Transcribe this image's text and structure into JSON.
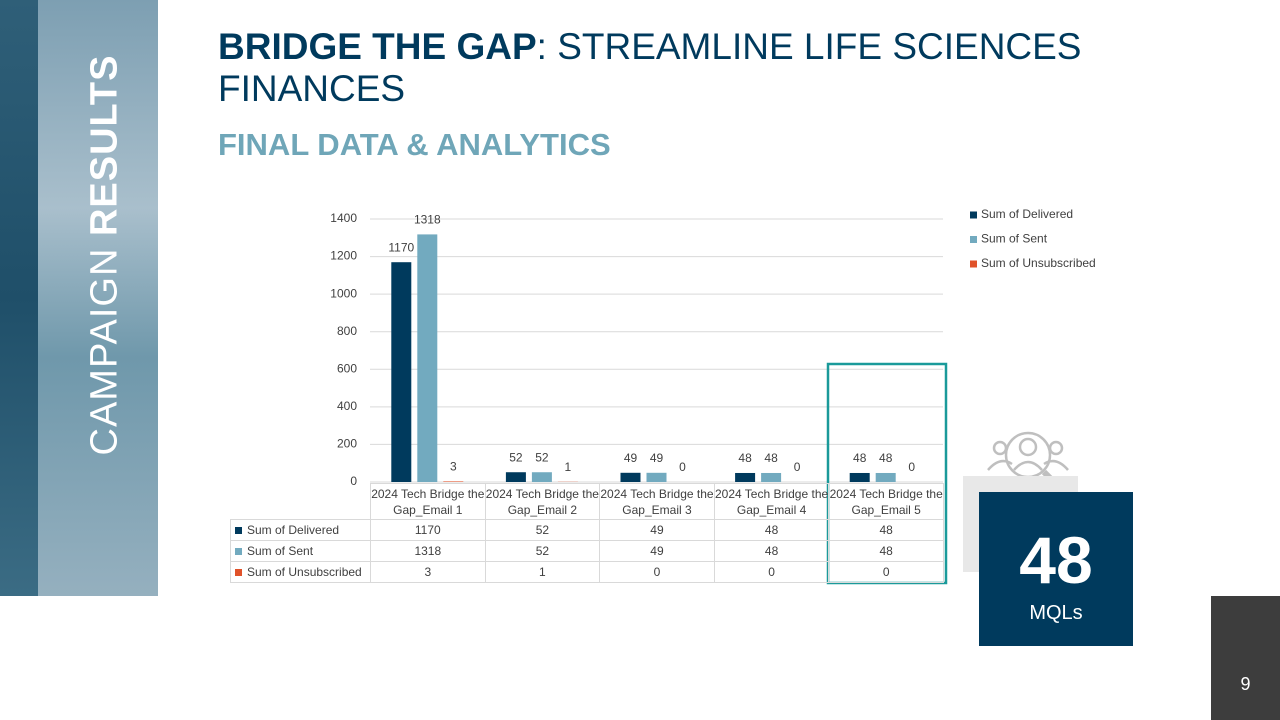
{
  "sidebar": {
    "light": "CAMPAIGN",
    "bold": "RESULTS"
  },
  "title": {
    "bold": "BRIDGE THE GAP",
    "rest": ": STREAMLINE LIFE SCIENCES FINANCES"
  },
  "subtitle": "FINAL DATA & ANALYTICS",
  "kpi": {
    "value": 48,
    "label": "MQLs"
  },
  "page_number": 9,
  "chart_data": {
    "type": "bar",
    "categories": [
      "2024 Tech Bridge the Gap_Email 1",
      "2024 Tech Bridge the Gap_Email 2",
      "2024 Tech Bridge the Gap_Email 3",
      "2024 Tech Bridge the Gap_Email 4",
      "2024 Tech Bridge the Gap_Email 5"
    ],
    "series": [
      {
        "name": "Sum of Delivered",
        "color": "#003a5d",
        "values": [
          1170,
          52,
          49,
          48,
          48
        ]
      },
      {
        "name": "Sum of Sent",
        "color": "#72aabf",
        "values": [
          1318,
          52,
          49,
          48,
          48
        ]
      },
      {
        "name": "Sum of Unsubscribed",
        "color": "#e0522a",
        "values": [
          3,
          1,
          0,
          0,
          0
        ]
      }
    ],
    "ylim": [
      0,
      1400
    ],
    "yticks": [
      0,
      200,
      400,
      600,
      800,
      1000,
      1200,
      1400
    ],
    "grid": true,
    "legend": "right"
  }
}
